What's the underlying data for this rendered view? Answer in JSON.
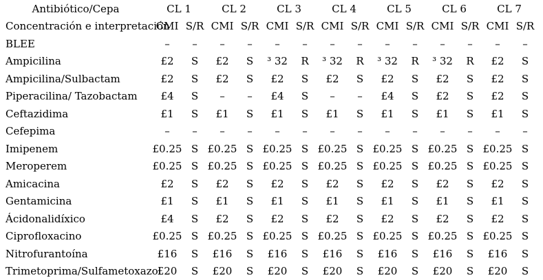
{
  "page": {
    "background": "#ffffff",
    "text_color": "#000000"
  },
  "table": {
    "corner_header": "Antibiótico/Cepa",
    "subheader_label": "Concentración e interpretación",
    "strain_headers": [
      "CL 1",
      "CL 2",
      "CL 3",
      "CL 4",
      "CL 5",
      "CL 6",
      "CL 7"
    ],
    "sub_columns": [
      "CMI",
      "S/R"
    ],
    "rows": [
      {
        "name": "BLEE",
        "cells": [
          [
            "–",
            "–"
          ],
          [
            "–",
            "–"
          ],
          [
            "–",
            "–"
          ],
          [
            "–",
            "–"
          ],
          [
            "–",
            "–"
          ],
          [
            "–",
            "–"
          ],
          [
            "–",
            "–"
          ]
        ]
      },
      {
        "name": "Ampicilina",
        "cells": [
          [
            "£2",
            "S"
          ],
          [
            "£2",
            "S"
          ],
          [
            "³ 32",
            "R"
          ],
          [
            "³ 32",
            "R"
          ],
          [
            "³ 32",
            "R"
          ],
          [
            "³ 32",
            "R"
          ],
          [
            "£2",
            "S"
          ]
        ]
      },
      {
        "name": "Ampicilina/Sulbactam",
        "cells": [
          [
            "£2",
            "S"
          ],
          [
            "£2",
            "S"
          ],
          [
            "£2",
            "S"
          ],
          [
            "£2",
            "S"
          ],
          [
            "£2",
            "S"
          ],
          [
            "£2",
            "S"
          ],
          [
            "£2",
            "S"
          ]
        ]
      },
      {
        "name": "Piperacilina/ Tazobactam",
        "cells": [
          [
            "£4",
            "S"
          ],
          [
            "–",
            "–"
          ],
          [
            "£4",
            "S"
          ],
          [
            "–",
            "–"
          ],
          [
            "£4",
            "S"
          ],
          [
            "£2",
            "S"
          ],
          [
            "£2",
            "S"
          ]
        ]
      },
      {
        "name": "Ceftazidima",
        "cells": [
          [
            "£1",
            "S"
          ],
          [
            "£1",
            "S"
          ],
          [
            "£1",
            "S"
          ],
          [
            "£1",
            "S"
          ],
          [
            "£1",
            "S"
          ],
          [
            "£1",
            "S"
          ],
          [
            "£1",
            "S"
          ]
        ]
      },
      {
        "name": "Cefepima",
        "cells": [
          [
            "–",
            "–"
          ],
          [
            "–",
            "–"
          ],
          [
            "–",
            "–"
          ],
          [
            "–",
            "–"
          ],
          [
            "–",
            "–"
          ],
          [
            "–",
            "–"
          ],
          [
            "–",
            "–"
          ]
        ]
      },
      {
        "name": "Imipenem",
        "cells": [
          [
            "£0.25",
            "S"
          ],
          [
            "£0.25",
            "S"
          ],
          [
            "£0.25",
            "S"
          ],
          [
            "£0.25",
            "S"
          ],
          [
            "£0.25",
            "S"
          ],
          [
            "£0.25",
            "S"
          ],
          [
            "£0.25",
            "S"
          ]
        ]
      },
      {
        "name": "Meroperem",
        "cells": [
          [
            "£0.25",
            "S"
          ],
          [
            "£0.25",
            "S"
          ],
          [
            "£0.25",
            "S"
          ],
          [
            "£0.25",
            "S"
          ],
          [
            "£0.25",
            "S"
          ],
          [
            "£0.25",
            "S"
          ],
          [
            "£0.25",
            "S"
          ]
        ]
      },
      {
        "name": "Amicacina",
        "cells": [
          [
            "£2",
            "S"
          ],
          [
            "£2",
            "S"
          ],
          [
            "£2",
            "S"
          ],
          [
            "£2",
            "S"
          ],
          [
            "£2",
            "S"
          ],
          [
            "£2",
            "S"
          ],
          [
            "£2",
            "S"
          ]
        ]
      },
      {
        "name": "Gentamicina",
        "cells": [
          [
            "£1",
            "S"
          ],
          [
            "£1",
            "S"
          ],
          [
            "£1",
            "S"
          ],
          [
            "£1",
            "S"
          ],
          [
            "£1",
            "S"
          ],
          [
            "£1",
            "S"
          ],
          [
            "£1",
            "S"
          ]
        ]
      },
      {
        "name": "Ácidonalidíxico",
        "cells": [
          [
            "£4",
            "S"
          ],
          [
            "£2",
            "S"
          ],
          [
            "£2",
            "S"
          ],
          [
            "£2",
            "S"
          ],
          [
            "£2",
            "S"
          ],
          [
            "£2",
            "S"
          ],
          [
            "£2",
            "S"
          ]
        ]
      },
      {
        "name": "Ciprofloxacino",
        "cells": [
          [
            "£0.25",
            "S"
          ],
          [
            "£0.25",
            "S"
          ],
          [
            "£0.25",
            "S"
          ],
          [
            "£0.25",
            "S"
          ],
          [
            "£0.25",
            "S"
          ],
          [
            "£0.25",
            "S"
          ],
          [
            "£0.25",
            "S"
          ]
        ]
      },
      {
        "name": "Nitrofurantoína",
        "cells": [
          [
            "£16",
            "S"
          ],
          [
            "£16",
            "S"
          ],
          [
            "£16",
            "S"
          ],
          [
            "£16",
            "S"
          ],
          [
            "£16",
            "S"
          ],
          [
            "£16",
            "S"
          ],
          [
            "£16",
            "S"
          ]
        ]
      },
      {
        "name": "Trimetoprima/Sulfametoxazol",
        "cells": [
          [
            "£20",
            "S"
          ],
          [
            "£20",
            "S"
          ],
          [
            "£20",
            "S"
          ],
          [
            "£20",
            "S"
          ],
          [
            "£20",
            "S"
          ],
          [
            "£20",
            "S"
          ],
          [
            "£20",
            "S"
          ]
        ]
      }
    ]
  }
}
